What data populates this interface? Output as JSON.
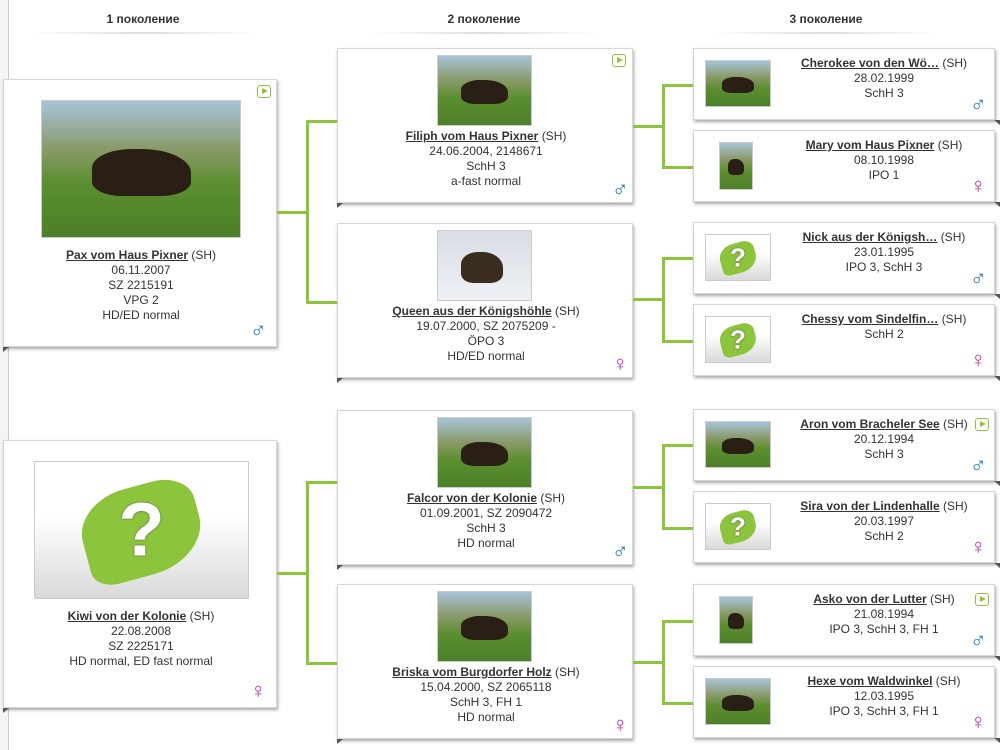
{
  "headers": [
    "1 поколение",
    "2 поколение",
    "3 поколение"
  ],
  "colors": {
    "connector": "#8cc43c",
    "male": "#1b75bb",
    "female": "#c030b0"
  },
  "gen1": [
    {
      "name": "Pax vom Haus Pixner",
      "breed": "(SH)",
      "lines": [
        "06.11.2007",
        "SZ 2215191",
        "VPG 2",
        "HD/ED normal"
      ],
      "sex": "male",
      "video": true,
      "photo": "dog"
    },
    {
      "name": "Kiwi von der Kolonie",
      "breed": "(SH)",
      "lines": [
        "22.08.2008",
        "SZ 2225171",
        "HD normal, ED fast normal"
      ],
      "sex": "female",
      "video": false,
      "photo": "unknown"
    }
  ],
  "gen2": [
    {
      "name": "Filiph vom Haus Pixner",
      "breed": "(SH)",
      "lines": [
        "24.06.2004, 2148671",
        "SchH 3",
        "a-fast normal"
      ],
      "sex": "male",
      "video": true,
      "photo": "dog"
    },
    {
      "name": "Queen aus der Königshöhle",
      "breed": "(SH)",
      "lines": [
        "19.07.2000, SZ 2075209 -",
        "ÖPO 3",
        "HD/ED normal"
      ],
      "sex": "female",
      "video": false,
      "photo": "snow"
    },
    {
      "name": "Falcor von der Kolonie",
      "breed": "(SH)",
      "lines": [
        "01.09.2001, SZ 2090472",
        "SchH 3",
        "HD normal"
      ],
      "sex": "male",
      "video": false,
      "photo": "dog"
    },
    {
      "name": "Briska vom Burgdorfer Holz",
      "breed": "(SH)",
      "lines": [
        "15.04.2000, SZ 2065118",
        "SchH 3, FH 1",
        "HD normal"
      ],
      "sex": "female",
      "video": false,
      "photo": "dog"
    }
  ],
  "gen3": [
    {
      "name": "Cherokee von den Wö…",
      "breed": "(SH)",
      "lines": [
        "28.02.1999",
        "SchH 3"
      ],
      "sex": "male",
      "video": false,
      "photo": "dog"
    },
    {
      "name": "Mary vom Haus Pixner",
      "breed": "(SH)",
      "lines": [
        "08.10.1998",
        "IPO 1"
      ],
      "sex": "female",
      "video": false,
      "photo": "dog-small"
    },
    {
      "name": "Nick aus der Königsh…",
      "breed": "(SH)",
      "lines": [
        "23.01.1995",
        "IPO 3, SchH 3"
      ],
      "sex": "male",
      "video": false,
      "photo": "unknown"
    },
    {
      "name": "Chessy vom Sindelfin…",
      "breed": "(SH)",
      "lines": [
        "SchH 2"
      ],
      "sex": "female",
      "video": false,
      "photo": "unknown"
    },
    {
      "name": "Aron vom Bracheler See",
      "breed": "(SH)",
      "lines": [
        "20.12.1994",
        "SchH 3"
      ],
      "sex": "male",
      "video": true,
      "photo": "dog"
    },
    {
      "name": "Sira von der Lindenhalle",
      "breed": "(SH)",
      "lines": [
        "20.03.1997",
        "SchH 2"
      ],
      "sex": "female",
      "video": false,
      "photo": "unknown"
    },
    {
      "name": "Asko von der Lutter",
      "breed": "(SH)",
      "lines": [
        "21.08.1994",
        "IPO 3, SchH 3, FH 1"
      ],
      "sex": "male",
      "video": true,
      "photo": "dog-small"
    },
    {
      "name": "Hexe vom Waldwinkel",
      "breed": "(SH)",
      "lines": [
        "12.03.1995",
        "IPO 3, SchH 3, FH 1"
      ],
      "sex": "female",
      "video": false,
      "photo": "dog"
    }
  ]
}
